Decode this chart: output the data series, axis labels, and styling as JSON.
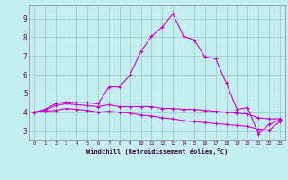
{
  "title": "",
  "xlabel": "Windchill (Refroidissement éolien,°C)",
  "background_color": "#c5eef0",
  "grid_color": "#a0ccd0",
  "line_color": "#cc00cc",
  "xlim": [
    -0.5,
    23.5
  ],
  "ylim": [
    2.5,
    9.7
  ],
  "yticks": [
    3,
    4,
    5,
    6,
    7,
    8,
    9
  ],
  "xticks": [
    0,
    1,
    2,
    3,
    4,
    5,
    6,
    7,
    8,
    9,
    10,
    11,
    12,
    13,
    14,
    15,
    16,
    17,
    18,
    19,
    20,
    21,
    22,
    23
  ],
  "series1_x": [
    0,
    1,
    2,
    3,
    4,
    5,
    6,
    7,
    8,
    9,
    10,
    11,
    12,
    13,
    14,
    15,
    16,
    17,
    18,
    19,
    20,
    21,
    22,
    23
  ],
  "series1_y": [
    4.0,
    4.15,
    4.45,
    4.55,
    4.5,
    4.5,
    4.45,
    5.35,
    5.35,
    6.0,
    7.25,
    8.05,
    8.55,
    9.25,
    8.05,
    7.85,
    6.95,
    6.85,
    5.55,
    4.15,
    4.25,
    2.85,
    3.35,
    3.6
  ],
  "series2_x": [
    0,
    1,
    2,
    3,
    4,
    5,
    6,
    7,
    8,
    9,
    10,
    11,
    12,
    13,
    14,
    15,
    16,
    17,
    18,
    19,
    20,
    21,
    22,
    23
  ],
  "series2_y": [
    4.0,
    4.1,
    4.35,
    4.45,
    4.4,
    4.35,
    4.3,
    4.4,
    4.3,
    4.3,
    4.3,
    4.3,
    4.2,
    4.2,
    4.15,
    4.15,
    4.1,
    4.05,
    4.0,
    3.95,
    3.9,
    3.7,
    3.65,
    3.65
  ],
  "series3_x": [
    0,
    1,
    2,
    3,
    4,
    5,
    6,
    7,
    8,
    9,
    10,
    11,
    12,
    13,
    14,
    15,
    16,
    17,
    18,
    19,
    20,
    21,
    22,
    23
  ],
  "series3_y": [
    4.0,
    4.05,
    4.1,
    4.2,
    4.15,
    4.1,
    4.0,
    4.05,
    4.0,
    3.95,
    3.85,
    3.8,
    3.7,
    3.65,
    3.55,
    3.5,
    3.45,
    3.4,
    3.35,
    3.3,
    3.25,
    3.1,
    3.05,
    3.5
  ]
}
